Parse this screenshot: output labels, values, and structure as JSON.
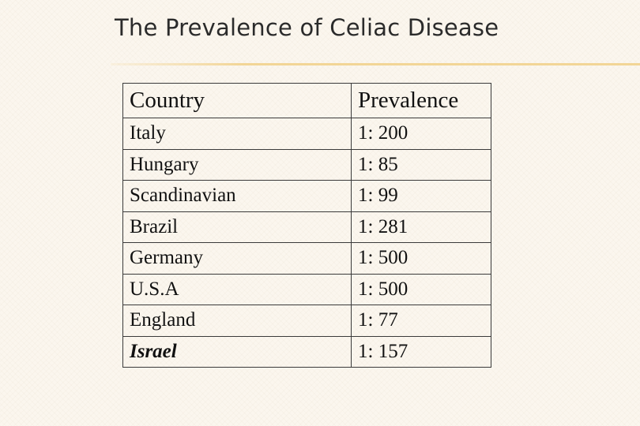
{
  "slide": {
    "title": "The Prevalence of Celiac Disease"
  },
  "table": {
    "headers": [
      "Country",
      "Prevalence"
    ],
    "rows": [
      {
        "country": "Italy",
        "prevalence": "1: 200"
      },
      {
        "country": "Hungary",
        "prevalence": "1: 85"
      },
      {
        "country": "Scandinavian",
        "prevalence": "1: 99"
      },
      {
        "country": "Brazil",
        "prevalence": "1: 281"
      },
      {
        "country": "Germany",
        "prevalence": "1: 500"
      },
      {
        "country": "U.S.A",
        "prevalence": "1: 500"
      },
      {
        "country": "England",
        "prevalence": "1: 77"
      },
      {
        "country": "Israel",
        "prevalence": "1: 157"
      }
    ]
  },
  "colors": {
    "background": "#fbf6ee",
    "title_rule": "#f2d596",
    "text": "#111111",
    "border": "#3a3a3a"
  }
}
